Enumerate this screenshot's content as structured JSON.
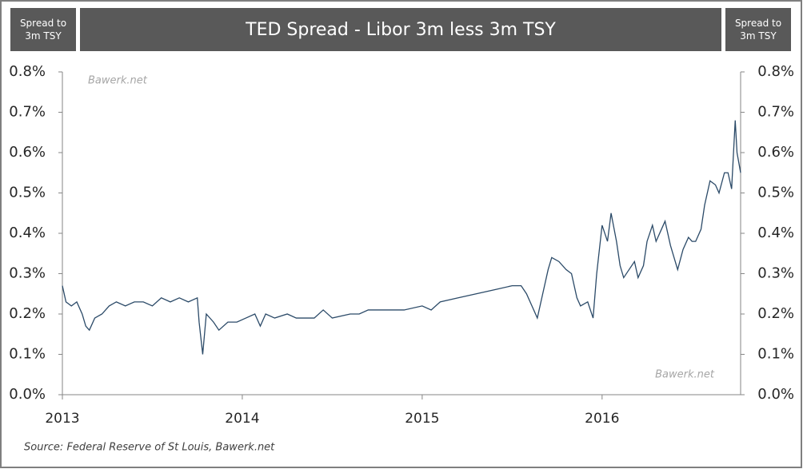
{
  "chart_data": {
    "type": "line",
    "title": "TED Spread - Libor 3m less 3m TSY",
    "y_label": "Spread to 3m TSY",
    "y2_label": "Spread to 3m TSY",
    "annotations": [
      "Bawerk.net",
      "Bawerk.net"
    ],
    "source": "Source: Federal Reserve of St Louis, Bawerk.net",
    "color": "#2b4a68",
    "xlim": [
      2013,
      2016.77
    ],
    "xticks": [
      2013,
      2014,
      2015,
      2016
    ],
    "ylim": [
      0,
      0.8
    ],
    "yticks": [
      {
        "value": 0,
        "label": "0.0%"
      },
      {
        "value": 0.1,
        "label": "0.1%"
      },
      {
        "value": 0.2,
        "label": "0.2%"
      },
      {
        "value": 0.3,
        "label": "0.3%"
      },
      {
        "value": 0.4,
        "label": "0.4%"
      },
      {
        "value": 0.5,
        "label": "0.5%"
      },
      {
        "value": 0.6,
        "label": "0.6%"
      },
      {
        "value": 0.7,
        "label": "0.7%"
      },
      {
        "value": 0.8,
        "label": "0.8%"
      }
    ],
    "y2lim": [
      0,
      0.8
    ],
    "y2ticks": [
      {
        "value": 0,
        "label": "0.0%"
      },
      {
        "value": 0.1,
        "label": "0.1%"
      },
      {
        "value": 0.2,
        "label": "0.2%"
      },
      {
        "value": 0.3,
        "label": "0.3%"
      },
      {
        "value": 0.4,
        "label": "0.4%"
      },
      {
        "value": 0.5,
        "label": "0.5%"
      },
      {
        "value": 0.6,
        "label": "0.6%"
      },
      {
        "value": 0.7,
        "label": "0.7%"
      },
      {
        "value": 0.8,
        "label": "0.8%"
      }
    ],
    "x": [
      2013.0,
      2013.02,
      2013.05,
      2013.08,
      2013.11,
      2013.13,
      2013.15,
      2013.18,
      2013.22,
      2013.26,
      2013.3,
      2013.35,
      2013.4,
      2013.45,
      2013.5,
      2013.55,
      2013.6,
      2013.65,
      2013.7,
      2013.75,
      2013.76,
      2013.78,
      2013.8,
      2013.84,
      2013.87,
      2013.92,
      2013.97,
      2014.02,
      2014.07,
      2014.1,
      2014.13,
      2014.18,
      2014.25,
      2014.3,
      2014.4,
      2014.45,
      2014.5,
      2014.6,
      2014.65,
      2014.7,
      2014.8,
      2014.9,
      2015.0,
      2015.05,
      2015.1,
      2015.2,
      2015.3,
      2015.4,
      2015.5,
      2015.55,
      2015.58,
      2015.61,
      2015.64,
      2015.67,
      2015.7,
      2015.72,
      2015.76,
      2015.8,
      2015.83,
      2015.86,
      2015.88,
      2015.92,
      2015.95,
      2015.97,
      2016.0,
      2016.03,
      2016.05,
      2016.08,
      2016.1,
      2016.12,
      2016.15,
      2016.18,
      2016.2,
      2016.23,
      2016.25,
      2016.28,
      2016.3,
      2016.33,
      2016.35,
      2016.38,
      2016.4,
      2016.42,
      2016.45,
      2016.48,
      2016.5,
      2016.52,
      2016.55,
      2016.57,
      2016.6,
      2016.63,
      2016.65,
      2016.68,
      2016.7,
      2016.72,
      2016.74,
      2016.75,
      2016.77
    ],
    "values": [
      0.27,
      0.23,
      0.22,
      0.23,
      0.2,
      0.17,
      0.16,
      0.19,
      0.2,
      0.22,
      0.23,
      0.22,
      0.23,
      0.23,
      0.22,
      0.24,
      0.23,
      0.24,
      0.23,
      0.24,
      0.18,
      0.1,
      0.2,
      0.18,
      0.16,
      0.18,
      0.18,
      0.19,
      0.2,
      0.17,
      0.2,
      0.19,
      0.2,
      0.19,
      0.19,
      0.21,
      0.19,
      0.2,
      0.2,
      0.21,
      0.21,
      0.21,
      0.22,
      0.21,
      0.23,
      0.24,
      0.25,
      0.26,
      0.27,
      0.27,
      0.25,
      0.22,
      0.19,
      0.25,
      0.31,
      0.34,
      0.33,
      0.31,
      0.3,
      0.24,
      0.22,
      0.23,
      0.19,
      0.3,
      0.42,
      0.38,
      0.45,
      0.38,
      0.32,
      0.29,
      0.31,
      0.33,
      0.29,
      0.32,
      0.38,
      0.42,
      0.38,
      0.41,
      0.43,
      0.37,
      0.34,
      0.31,
      0.36,
      0.39,
      0.38,
      0.38,
      0.41,
      0.47,
      0.53,
      0.52,
      0.5,
      0.55,
      0.55,
      0.51,
      0.68,
      0.6,
      0.55
    ]
  }
}
